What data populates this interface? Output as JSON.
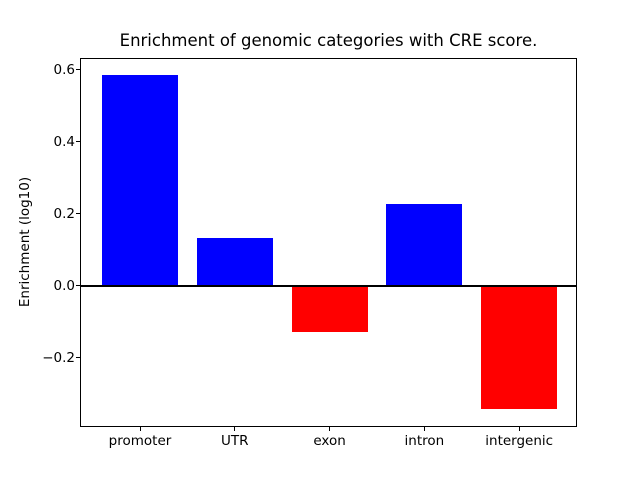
{
  "figure": {
    "background_color": "#ffffff",
    "spine_color": "#000000",
    "text_color": "#000000"
  },
  "chart_data": {
    "type": "bar",
    "title": "Enrichment of genomic categories with CRE score.",
    "xlabel": "",
    "ylabel": "Enrichment (log10)",
    "categories": [
      "promoter",
      "UTR",
      "exon",
      "intron",
      "intergenic"
    ],
    "values": [
      0.584,
      0.133,
      -0.128,
      0.227,
      -0.343
    ],
    "bar_colors": [
      "#0000ff",
      "#0000ff",
      "#ff0000",
      "#0000ff",
      "#ff0000"
    ],
    "positive_color": "#0000ff",
    "negative_color": "#ff0000",
    "ylim": [
      -0.392,
      0.632
    ],
    "yticks": [
      0.6,
      0.4,
      0.2,
      0.0,
      -0.2
    ],
    "ytick_labels": [
      "0.6",
      "0.4",
      "0.2",
      "0.0",
      "−0.2"
    ],
    "grid": false,
    "legend_position": "none",
    "zero_line": true,
    "zero_line_color": "#000000",
    "bar_width_fraction": 0.8
  }
}
